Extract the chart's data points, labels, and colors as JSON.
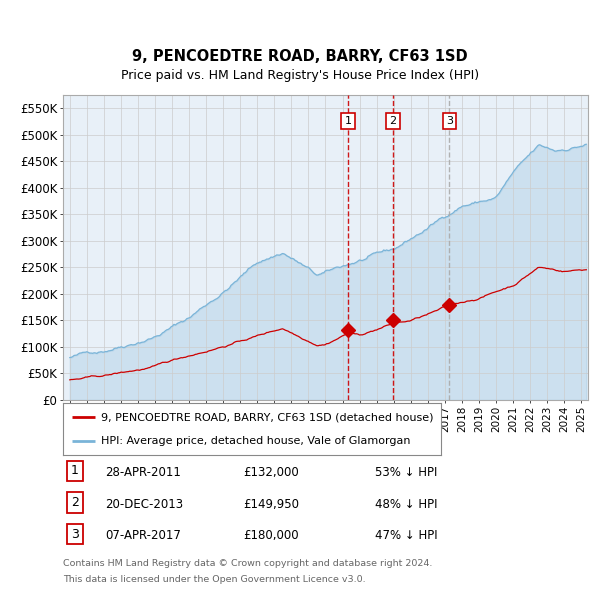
{
  "title": "9, PENCOEDTRE ROAD, BARRY, CF63 1SD",
  "subtitle": "Price paid vs. HM Land Registry's House Price Index (HPI)",
  "red_label": "9, PENCOEDTRE ROAD, BARRY, CF63 1SD (detached house)",
  "blue_label": "HPI: Average price, detached house, Vale of Glamorgan",
  "transactions": [
    {
      "num": 1,
      "date": "28-APR-2011",
      "date_decimal": 2011.32,
      "price": 132000,
      "price_str": "£132,000",
      "pct": "53% ↓ HPI"
    },
    {
      "num": 2,
      "date": "20-DEC-2013",
      "date_decimal": 2013.97,
      "price": 149950,
      "price_str": "£149,950",
      "pct": "48% ↓ HPI"
    },
    {
      "num": 3,
      "date": "07-APR-2017",
      "date_decimal": 2017.27,
      "price": 180000,
      "price_str": "£180,000",
      "pct": "47% ↓ HPI"
    }
  ],
  "footer_line1": "Contains HM Land Registry data © Crown copyright and database right 2024.",
  "footer_line2": "This data is licensed under the Open Government Licence v3.0.",
  "ylim": [
    0,
    575000
  ],
  "yticks": [
    0,
    50000,
    100000,
    150000,
    200000,
    250000,
    300000,
    350000,
    400000,
    450000,
    500000,
    550000
  ],
  "ytick_labels": [
    "£0",
    "£50K",
    "£100K",
    "£150K",
    "£200K",
    "£250K",
    "£300K",
    "£350K",
    "£400K",
    "£450K",
    "£500K",
    "£550K"
  ],
  "xlim_start": 1994.6,
  "xlim_end": 2025.4,
  "xtick_years": [
    1995,
    1996,
    1997,
    1998,
    1999,
    2000,
    2001,
    2002,
    2003,
    2004,
    2005,
    2006,
    2007,
    2008,
    2009,
    2010,
    2011,
    2012,
    2013,
    2014,
    2015,
    2016,
    2017,
    2018,
    2019,
    2020,
    2021,
    2022,
    2023,
    2024,
    2025
  ],
  "blue_color": "#7ab4d8",
  "red_color": "#cc0000",
  "bg_fill_color": "#e8f0f8",
  "grid_color": "#cccccc",
  "vline_red_color": "#cc0000",
  "vline_grey_color": "#aaaaaa"
}
